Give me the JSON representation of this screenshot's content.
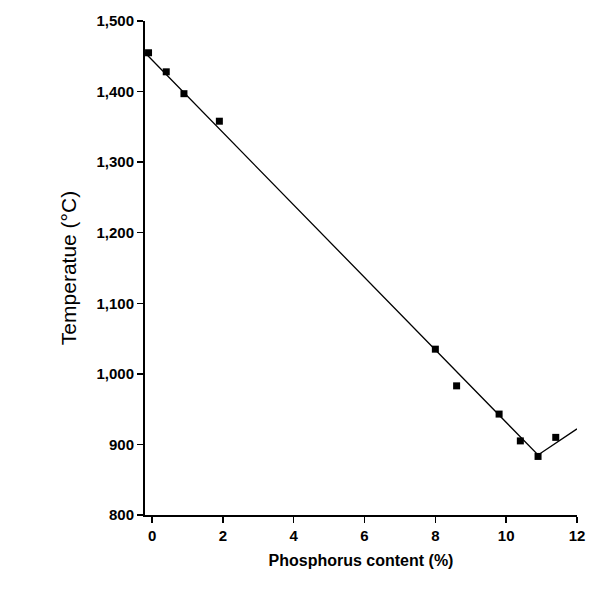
{
  "chart_data": {
    "type": "scatter",
    "xlabel": "Phosphorus content (%)",
    "ylabel": "Temperatue (°C)",
    "xlim": [
      -0.2,
      12
    ],
    "ylim": [
      800,
      1500
    ],
    "xticks": [
      0,
      2,
      4,
      6,
      8,
      10,
      12
    ],
    "yticks": [
      800,
      900,
      {
        "value": 1000,
        "label": "1,000"
      },
      {
        "value": 1100,
        "label": "1,100"
      },
      {
        "value": 1200,
        "label": "1,200"
      },
      {
        "value": 1300,
        "label": "1,300"
      },
      {
        "value": 1400,
        "label": "1,400"
      },
      {
        "value": 1500,
        "label": "1,500"
      }
    ],
    "grid": false,
    "series": [
      {
        "type": "scatter",
        "marker": "square",
        "color": "#000000",
        "x": [
          -0.1,
          0.4,
          0.9,
          1.9,
          8.0,
          8.6,
          9.8,
          10.4,
          10.9,
          11.4
        ],
        "values": [
          1455,
          1428,
          1397,
          1358,
          1035,
          983,
          943,
          905,
          883,
          910
        ]
      },
      {
        "type": "line",
        "line_style": "solid",
        "color": "#000000",
        "x": [
          -0.2,
          10.9,
          12
        ],
        "values": [
          1455,
          885,
          922
        ]
      }
    ]
  }
}
